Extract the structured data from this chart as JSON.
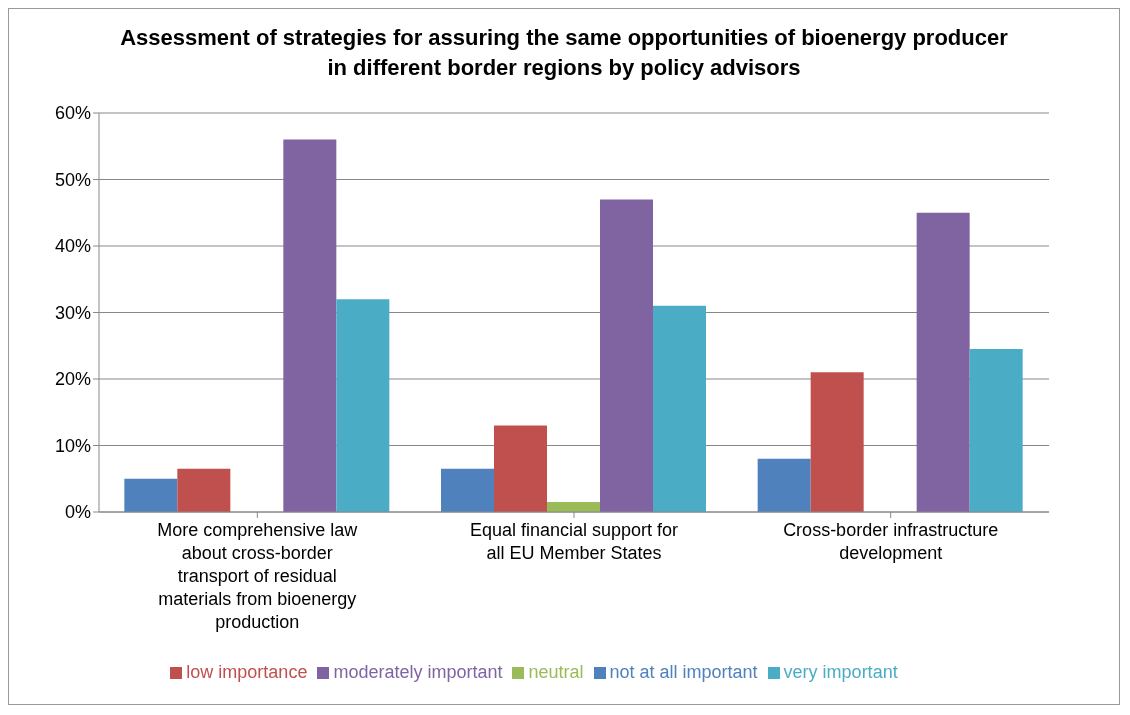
{
  "chart_data": {
    "type": "bar",
    "title": "Assessment of strategies for assuring the same opportunities of bioenergy producer in different border regions by policy advisors",
    "categories": [
      "More comprehensive law about cross-border transport of residual materials from bioenergy production",
      "Equal financial support for all EU Member States",
      "Cross-border infrastructure development"
    ],
    "series": [
      {
        "name": "not at all important",
        "color": "#4f81bd",
        "values": [
          5,
          6.5,
          8
        ]
      },
      {
        "name": "low importance",
        "color": "#c0504d",
        "values": [
          6.5,
          13,
          21
        ]
      },
      {
        "name": "neutral",
        "color": "#9bbb59",
        "values": [
          0,
          1.5,
          0
        ]
      },
      {
        "name": "moderately important",
        "color": "#8064a2",
        "values": [
          56,
          47,
          45
        ]
      },
      {
        "name": "very important",
        "color": "#4bacc6",
        "values": [
          32,
          31,
          24.5
        ]
      }
    ],
    "ylim": [
      0,
      60
    ],
    "yticks": [
      {
        "value": 0,
        "label": "0%"
      },
      {
        "value": 10,
        "label": "10%"
      },
      {
        "value": 20,
        "label": "20%"
      },
      {
        "value": 30,
        "label": "30%"
      },
      {
        "value": 40,
        "label": "40%"
      },
      {
        "value": 50,
        "label": "50%"
      },
      {
        "value": 60,
        "label": "60%"
      }
    ],
    "grid": "y",
    "legend": "bottom"
  }
}
